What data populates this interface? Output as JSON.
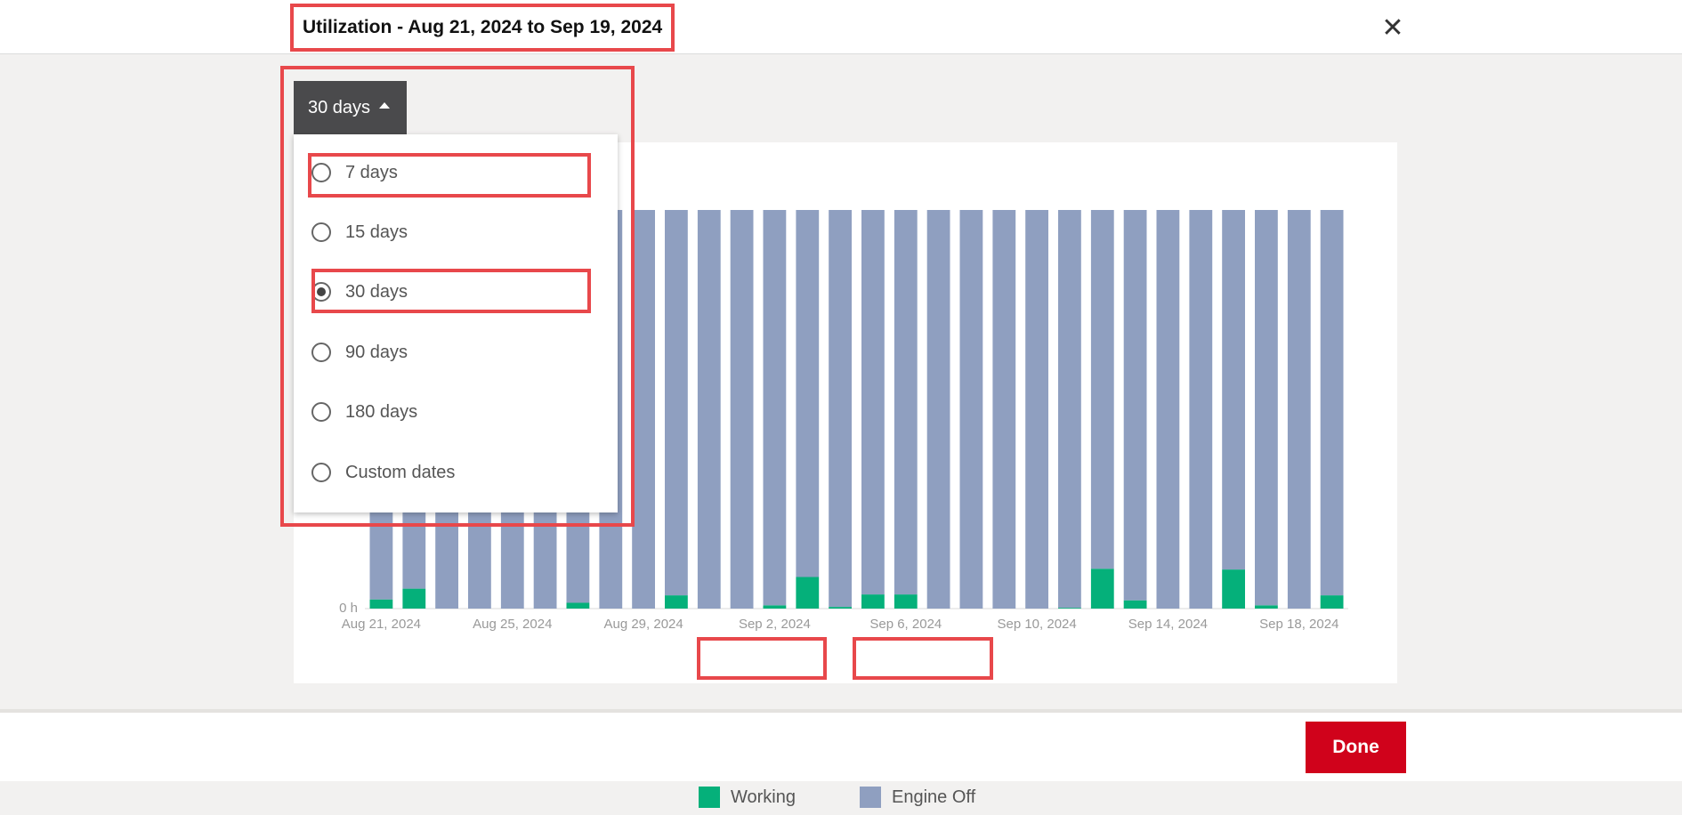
{
  "header": {
    "title": "Utilization - Aug 21, 2024 to Sep 19, 2024",
    "close_icon": "close-icon"
  },
  "range_button": {
    "label": "30 days",
    "icon": "caret-up-icon"
  },
  "dropdown": {
    "options": [
      {
        "label": "7 days",
        "selected": false
      },
      {
        "label": "15 days",
        "selected": false
      },
      {
        "label": "30 days",
        "selected": true
      },
      {
        "label": "90 days",
        "selected": false
      },
      {
        "label": "180 days",
        "selected": false
      },
      {
        "label": "Custom dates",
        "selected": false
      }
    ]
  },
  "footer": {
    "done_label": "Done"
  },
  "colors": {
    "working": "#05b07a",
    "engine_off": "#8f9fc0",
    "highlight": "#e8484b",
    "done": "#d0021b"
  },
  "chart_data": {
    "type": "bar",
    "stacked": true,
    "ylabel_tick": "0 h",
    "x": [
      "Aug 21, 2024",
      "Aug 22, 2024",
      "Aug 23, 2024",
      "Aug 24, 2024",
      "Aug 25, 2024",
      "Aug 26, 2024",
      "Aug 27, 2024",
      "Aug 28, 2024",
      "Aug 29, 2024",
      "Aug 30, 2024",
      "Aug 31, 2024",
      "Sep 1, 2024",
      "Sep 2, 2024",
      "Sep 3, 2024",
      "Sep 4, 2024",
      "Sep 5, 2024",
      "Sep 6, 2024",
      "Sep 7, 2024",
      "Sep 8, 2024",
      "Sep 9, 2024",
      "Sep 10, 2024",
      "Sep 11, 2024",
      "Sep 12, 2024",
      "Sep 13, 2024",
      "Sep 14, 2024",
      "Sep 15, 2024",
      "Sep 16, 2024",
      "Sep 17, 2024",
      "Sep 18, 2024",
      "Sep 19, 2024"
    ],
    "x_tick_labels": [
      "Aug 21, 2024",
      "Aug 25, 2024",
      "Aug 29, 2024",
      "Sep 2, 2024",
      "Sep 6, 2024",
      "Sep 10, 2024",
      "Sep 14, 2024",
      "Sep 18, 2024"
    ],
    "series": [
      {
        "name": "Working",
        "values": [
          0.55,
          1.2,
          0,
          0,
          0,
          0,
          0.35,
          0,
          0,
          0.8,
          0,
          0,
          0.2,
          1.9,
          0.1,
          0.85,
          0.85,
          0,
          0,
          0,
          0,
          0.05,
          2.4,
          0.5,
          0,
          0,
          2.35,
          0.2,
          0,
          0.8
        ]
      },
      {
        "name": "Engine Off",
        "values": [
          23.45,
          22.8,
          24,
          24,
          24,
          24,
          23.65,
          24,
          24,
          23.2,
          24,
          24,
          23.8,
          22.1,
          23.9,
          23.15,
          23.15,
          24,
          24,
          24,
          24,
          23.95,
          21.6,
          23.5,
          24,
          24,
          21.65,
          23.8,
          24,
          23.2
        ]
      }
    ],
    "ylim": [
      0,
      24
    ],
    "legend": "bottom-center"
  }
}
